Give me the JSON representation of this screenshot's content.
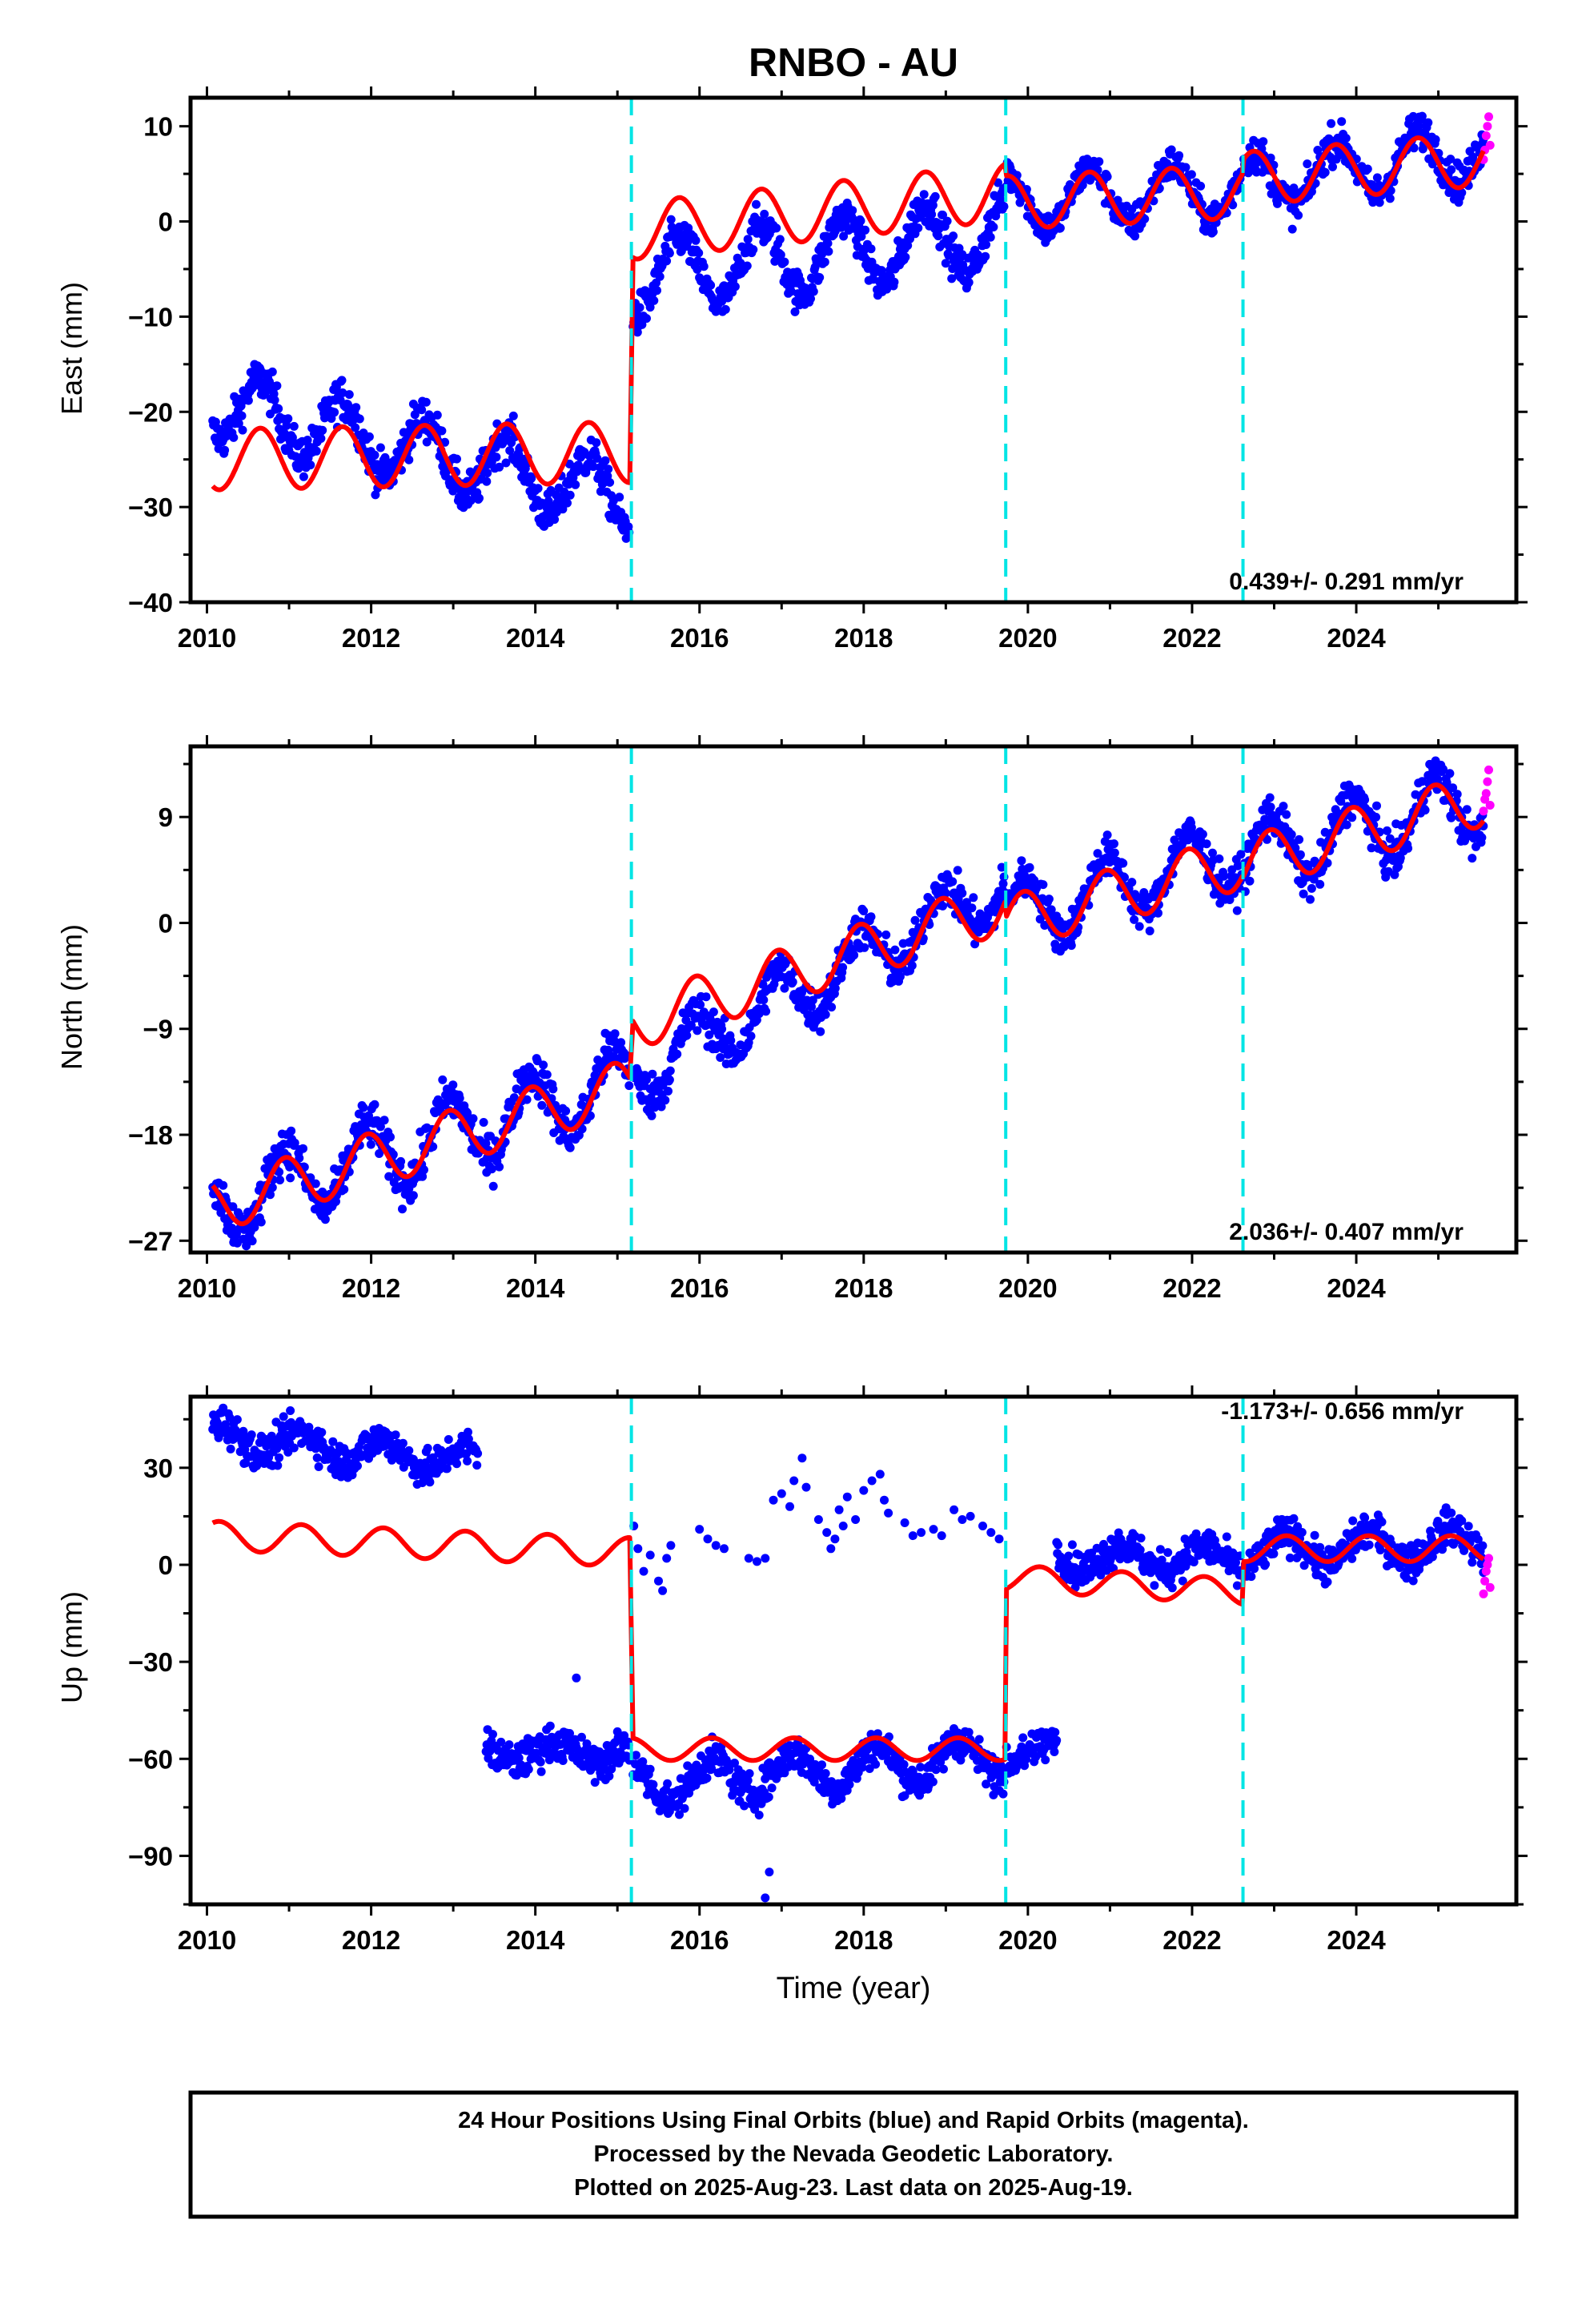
{
  "title": "RNBO - AU",
  "x_axis_label": "Time (year)",
  "footer": {
    "line1": "24 Hour Positions Using Final Orbits (blue) and Rapid Orbits (magenta).",
    "line2": "Processed by the Nevada Geodetic Laboratory.",
    "line3": "Plotted on 2025-Aug-23. Last data on 2025-Aug-19."
  },
  "colors": {
    "final_orbits": "#0000ff",
    "rapid_orbits": "#ff00ff",
    "model": "#ff0000",
    "equipment_change": "#00e5e5"
  },
  "chart_data": [
    {
      "type": "scatter",
      "panel": "east",
      "ylabel": "East (mm)",
      "xlim": [
        2009.8,
        2025.95
      ],
      "ylim": [
        -40,
        13
      ],
      "x_ticks": [
        2010,
        2012,
        2014,
        2016,
        2018,
        2020,
        2022,
        2024
      ],
      "y_ticks": [
        -40,
        -30,
        -20,
        -10,
        0,
        10
      ],
      "y_tick_labels": [
        "−40",
        "−30",
        "−20",
        "−10",
        "0",
        "10"
      ],
      "rate_label": "0.439+/- 0.291 mm/yr",
      "rate_position": "bottom-right",
      "vertical_lines": [
        2015.17,
        2019.73,
        2022.62
      ],
      "segments": [
        {
          "x0": 2010.07,
          "x1": 2015.15,
          "model_offset": -25.0,
          "model_trend": 0.15,
          "data_offset": -19.0,
          "data_trend": -2.0,
          "annual_amp": 3.2,
          "data_annual_amp": 3.5,
          "phase": 0.6,
          "noise": 1.6
        },
        {
          "x0": 2015.19,
          "x1": 2019.72,
          "model_offset": -1.0,
          "model_trend": 0.9,
          "data_offset": -6.0,
          "data_trend": 1.1,
          "annual_amp": 3.0,
          "data_annual_amp": 3.8,
          "phase": 0.5,
          "noise": 1.5
        },
        {
          "x0": 2019.74,
          "x1": 2022.61,
          "model_offset": 2.0,
          "model_trend": 0.4,
          "data_offset": 2.0,
          "data_trend": 0.5,
          "annual_amp": 2.8,
          "data_annual_amp": 3.0,
          "phase": 0.5,
          "noise": 1.3
        },
        {
          "x0": 2022.63,
          "x1": 2025.55,
          "model_offset": 4.5,
          "model_trend": 0.7,
          "data_offset": 4.0,
          "data_trend": 1.2,
          "annual_amp": 2.8,
          "data_annual_amp": 3.0,
          "phase": 0.5,
          "noise": 1.4
        }
      ],
      "rapid_points": {
        "x0": 2025.55,
        "x1": 2025.63,
        "y": [
          6.5,
          7.5,
          9.0,
          10.0,
          11.0,
          8.0
        ]
      }
    },
    {
      "type": "scatter",
      "panel": "north",
      "ylabel": "North (mm)",
      "xlim": [
        2009.8,
        2025.95
      ],
      "ylim": [
        -28,
        15
      ],
      "x_ticks": [
        2010,
        2012,
        2014,
        2016,
        2018,
        2020,
        2022,
        2024
      ],
      "y_ticks": [
        -27,
        -18,
        -9,
        0,
        9
      ],
      "y_tick_labels": [
        "−27",
        "−18",
        "−9",
        "0",
        "9"
      ],
      "rate_label": "2.036+/- 0.407 mm/yr",
      "rate_position": "bottom-right",
      "vertical_lines": [
        2015.17,
        2019.73,
        2022.62
      ],
      "segments": [
        {
          "x0": 2010.07,
          "x1": 2015.15,
          "model_offset": -24.0,
          "model_trend": 2.0,
          "data_offset": -24.0,
          "data_trend": 2.1,
          "annual_amp": 2.3,
          "data_annual_amp": 3.0,
          "phase": 0.3,
          "noise": 1.4
        },
        {
          "x0": 2015.19,
          "x1": 2019.72,
          "model_offset": -8.5,
          "model_trend": 2.2,
          "data_offset": -13.0,
          "data_trend": 3.6,
          "annual_amp": 2.3,
          "data_annual_amp": 2.5,
          "phase": 0.3,
          "noise": 1.3
        },
        {
          "x0": 2019.74,
          "x1": 2022.61,
          "model_offset": 0.0,
          "model_trend": 1.8,
          "data_offset": 0.5,
          "data_trend": 1.9,
          "annual_amp": 2.3,
          "data_annual_amp": 2.8,
          "phase": 0.3,
          "noise": 1.2
        },
        {
          "x0": 2022.63,
          "x1": 2025.55,
          "model_offset": 5.0,
          "model_trend": 1.9,
          "data_offset": 5.5,
          "data_trend": 1.7,
          "annual_amp": 2.3,
          "data_annual_amp": 3.0,
          "phase": 0.3,
          "noise": 1.3
        }
      ],
      "rapid_points": {
        "x0": 2025.55,
        "x1": 2025.63,
        "y": [
          9.5,
          10.5,
          11.0,
          12.0,
          13.0,
          10.0
        ]
      }
    },
    {
      "type": "scatter",
      "panel": "up",
      "ylabel": "Up (mm)",
      "xlim": [
        2009.8,
        2025.95
      ],
      "ylim": [
        -105,
        52
      ],
      "x_ticks": [
        2010,
        2012,
        2014,
        2016,
        2018,
        2020,
        2022,
        2024
      ],
      "y_ticks": [
        -90,
        -60,
        -30,
        0,
        30
      ],
      "y_tick_labels": [
        "−90",
        "−60",
        "−30",
        "0",
        "30"
      ],
      "rate_label": "-1.173+/- 0.656 mm/yr",
      "rate_position": "top-right",
      "vertical_lines": [
        2015.17,
        2019.73,
        2022.62
      ],
      "segments": [
        {
          "x0": 2010.07,
          "x1": 2015.15,
          "model_offset": 9.0,
          "model_trend": -1.0,
          "data_offset": 40.0,
          "data_trend": -2.5,
          "annual_amp": 4.5,
          "data_annual_amp": 4.0,
          "phase": 0.1,
          "noise": 4.0,
          "data_end": 2013.3
        },
        {
          "x0": 2015.19,
          "x1": 2019.72,
          "model_offset": -57.0,
          "model_trend": 0.0,
          "data_offset": -68.0,
          "data_trend": 2.0,
          "annual_amp": 3.5,
          "data_annual_amp": 6.0,
          "phase": 0.1,
          "noise": 4.0
        },
        {
          "x0": 2019.74,
          "x1": 2022.61,
          "model_offset": -4.0,
          "model_trend": -1.5,
          "data_offset": 3.0,
          "data_trend": -0.5,
          "annual_amp": 4.0,
          "data_annual_amp": 4.0,
          "phase": 0.1,
          "noise": 4.0,
          "data_start": 2020.35
        },
        {
          "x0": 2022.63,
          "x1": 2025.55,
          "model_offset": 5.0,
          "model_trend": 0.0,
          "data_offset": 4.0,
          "data_trend": 1.0,
          "annual_amp": 4.0,
          "data_annual_amp": 5.0,
          "phase": 0.1,
          "noise": 4.0
        }
      ],
      "extra_blocks": [
        {
          "x0": 2013.4,
          "x1": 2015.15,
          "offset": -58.0,
          "trend": 0.0,
          "annual_amp": 3.0,
          "noise": 4.0
        },
        {
          "x0": 2019.74,
          "x1": 2020.35,
          "offset": -58.0,
          "trend": 0.0,
          "annual_amp": 3.0,
          "noise": 4.0
        }
      ],
      "sparse_points": [
        [
          2015.2,
          12
        ],
        [
          2015.25,
          5
        ],
        [
          2015.32,
          -2
        ],
        [
          2015.4,
          3
        ],
        [
          2015.5,
          -5
        ],
        [
          2015.55,
          -8
        ],
        [
          2015.6,
          2
        ],
        [
          2015.65,
          6
        ],
        [
          2016.0,
          11
        ],
        [
          2016.1,
          8
        ],
        [
          2016.2,
          6
        ],
        [
          2016.3,
          5
        ],
        [
          2016.6,
          2
        ],
        [
          2016.7,
          1
        ],
        [
          2016.8,
          2
        ],
        [
          2016.9,
          20
        ],
        [
          2017.0,
          22
        ],
        [
          2017.1,
          18
        ],
        [
          2017.15,
          26
        ],
        [
          2017.25,
          33
        ],
        [
          2017.3,
          24
        ],
        [
          2017.45,
          14
        ],
        [
          2017.55,
          10
        ],
        [
          2017.6,
          5
        ],
        [
          2017.65,
          8
        ],
        [
          2017.7,
          17
        ],
        [
          2017.75,
          12
        ],
        [
          2017.8,
          21
        ],
        [
          2017.9,
          14
        ],
        [
          2018.0,
          23
        ],
        [
          2018.1,
          26
        ],
        [
          2018.2,
          28
        ],
        [
          2018.25,
          20
        ],
        [
          2018.3,
          16
        ],
        [
          2018.5,
          13
        ],
        [
          2018.6,
          9
        ],
        [
          2018.7,
          10
        ],
        [
          2018.85,
          11
        ],
        [
          2018.95,
          9
        ],
        [
          2019.1,
          17
        ],
        [
          2019.2,
          14
        ],
        [
          2019.3,
          15
        ],
        [
          2019.45,
          12
        ],
        [
          2019.55,
          10
        ],
        [
          2019.65,
          8
        ]
      ],
      "outliers": [
        [
          2016.8,
          -103
        ],
        [
          2016.85,
          -95
        ],
        [
          2014.5,
          -35
        ]
      ],
      "rapid_points": {
        "x0": 2025.55,
        "x1": 2025.63,
        "y": [
          -9.0,
          -5.0,
          -2.0,
          0.0,
          2.0,
          -7.0
        ]
      }
    }
  ]
}
